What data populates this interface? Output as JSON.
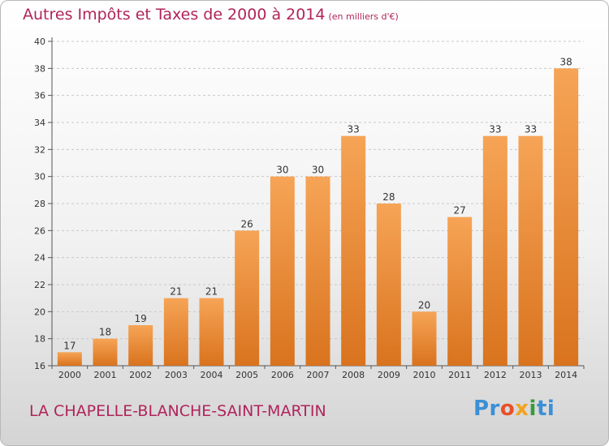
{
  "header": {
    "title": "Autres Impôts et Taxes de 2000 à 2014",
    "subtitle": "(en milliers d'€)"
  },
  "footer": {
    "commune": "LA CHAPELLE-BLANCHE-SAINT-MARTIN",
    "logo_text": "Proxiti"
  },
  "colors": {
    "title": "#b0245a",
    "bar_top": "#f6a456",
    "bar_bottom": "#d9731e",
    "grid": "#c8c8c8",
    "axis_text": "#333333"
  },
  "chart_data": {
    "type": "bar",
    "title": "Autres Impôts et Taxes de 2000 à 2014",
    "subtitle": "(en milliers d'€)",
    "xlabel": "",
    "ylabel": "",
    "categories": [
      "2000",
      "2001",
      "2002",
      "2003",
      "2004",
      "2005",
      "2006",
      "2007",
      "2008",
      "2009",
      "2010",
      "2011",
      "2012",
      "2013",
      "2014"
    ],
    "values": [
      17,
      18,
      19,
      21,
      21,
      26,
      30,
      30,
      33,
      28,
      20,
      27,
      33,
      33,
      38
    ],
    "ylim": [
      16,
      40
    ],
    "yticks": [
      16,
      18,
      20,
      22,
      24,
      26,
      28,
      30,
      32,
      34,
      36,
      38,
      40
    ],
    "grid": "horizontal dashed",
    "data_labels": true
  }
}
